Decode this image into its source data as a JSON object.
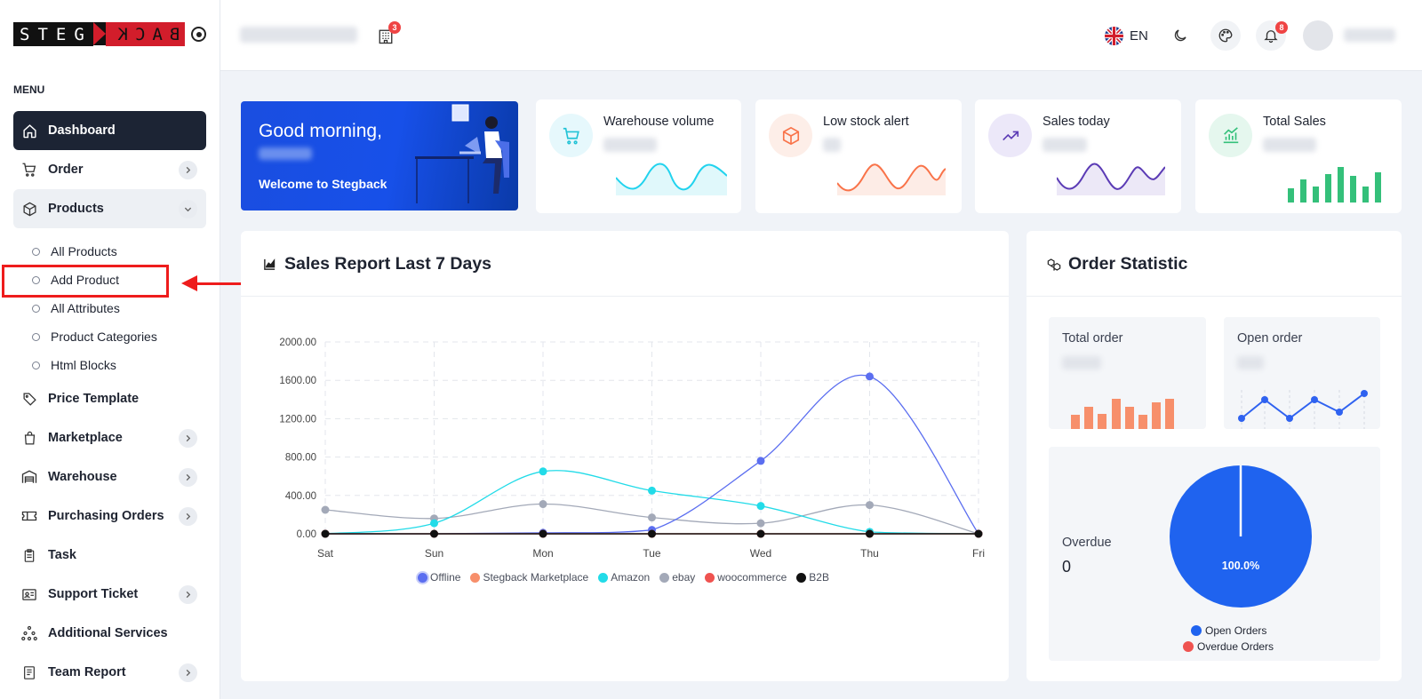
{
  "brand": {
    "left": "STEG",
    "right": "BACK"
  },
  "sidebar": {
    "menu_title": "MENU",
    "items": [
      {
        "label": "Dashboard",
        "icon": "home-icon"
      },
      {
        "label": "Order",
        "icon": "cart-icon"
      },
      {
        "label": "Products",
        "icon": "box-icon"
      },
      {
        "label": "Price Template",
        "icon": "tag-icon"
      },
      {
        "label": "Marketplace",
        "icon": "shopping-bag-icon"
      },
      {
        "label": "Warehouse",
        "icon": "warehouse-icon"
      },
      {
        "label": "Purchasing Orders",
        "icon": "ticket-icon"
      },
      {
        "label": "Task",
        "icon": "clipboard-icon"
      },
      {
        "label": "Support Ticket",
        "icon": "id-card-icon"
      },
      {
        "label": "Additional Services",
        "icon": "network-icon"
      },
      {
        "label": "Team Report",
        "icon": "document-icon"
      }
    ],
    "products_sub": [
      "All Products",
      "Add Product",
      "All Attributes",
      "Product Categories",
      "Html Blocks"
    ]
  },
  "header": {
    "building_badge": "3",
    "language": "EN",
    "notification_badge": "8"
  },
  "welcome": {
    "greeting": "Good morning,",
    "subtitle": "Welcome to Stegback"
  },
  "stats": [
    {
      "label": "Warehouse volume",
      "color": "#22d3ee"
    },
    {
      "label": "Low stock alert",
      "color": "#f97349"
    },
    {
      "label": "Sales today",
      "color": "#5b3bb5"
    },
    {
      "label": "Total Sales",
      "color": "#34c07a"
    }
  ],
  "sales_report": {
    "title": "Sales Report Last 7 Days",
    "legend": [
      {
        "name": "Offline",
        "color": "#5b6ef0"
      },
      {
        "name": "Stegback Marketplace",
        "color": "#f78f6b"
      },
      {
        "name": "Amazon",
        "color": "#22dbe8"
      },
      {
        "name": "ebay",
        "color": "#a3a9b8"
      },
      {
        "name": "woocommerce",
        "color": "#ef5350"
      },
      {
        "name": "B2B",
        "color": "#111111"
      }
    ]
  },
  "chart_data": {
    "type": "line",
    "categories": [
      "Sat",
      "Sun",
      "Mon",
      "Tue",
      "Wed",
      "Thu",
      "Fri"
    ],
    "ylim": [
      0,
      2000
    ],
    "yticks": [
      "0.00",
      "400.00",
      "800.00",
      "1200.00",
      "1600.00",
      "2000.00"
    ],
    "series": [
      {
        "name": "Offline",
        "values": [
          0,
          0,
          10,
          40,
          760,
          1640,
          0
        ]
      },
      {
        "name": "Stegback Marketplace",
        "values": [
          0,
          0,
          0,
          0,
          0,
          0,
          0
        ]
      },
      {
        "name": "Amazon",
        "values": [
          0,
          110,
          650,
          450,
          290,
          20,
          0
        ]
      },
      {
        "name": "ebay",
        "values": [
          250,
          160,
          310,
          170,
          110,
          300,
          0
        ]
      },
      {
        "name": "woocommerce",
        "values": [
          0,
          0,
          0,
          0,
          0,
          0,
          0
        ]
      },
      {
        "name": "B2B",
        "values": [
          0,
          0,
          0,
          0,
          0,
          0,
          0
        ]
      }
    ]
  },
  "order_statistic": {
    "title": "Order Statistic",
    "total_order_label": "Total order",
    "open_order_label": "Open order",
    "overdue_label": "Overdue",
    "overdue_value": "0",
    "pie_label": "100.0%",
    "pie_legend": [
      {
        "name": "Open Orders",
        "color": "#1f63ef"
      },
      {
        "name": "Overdue Orders",
        "color": "#ef5350"
      }
    ]
  }
}
